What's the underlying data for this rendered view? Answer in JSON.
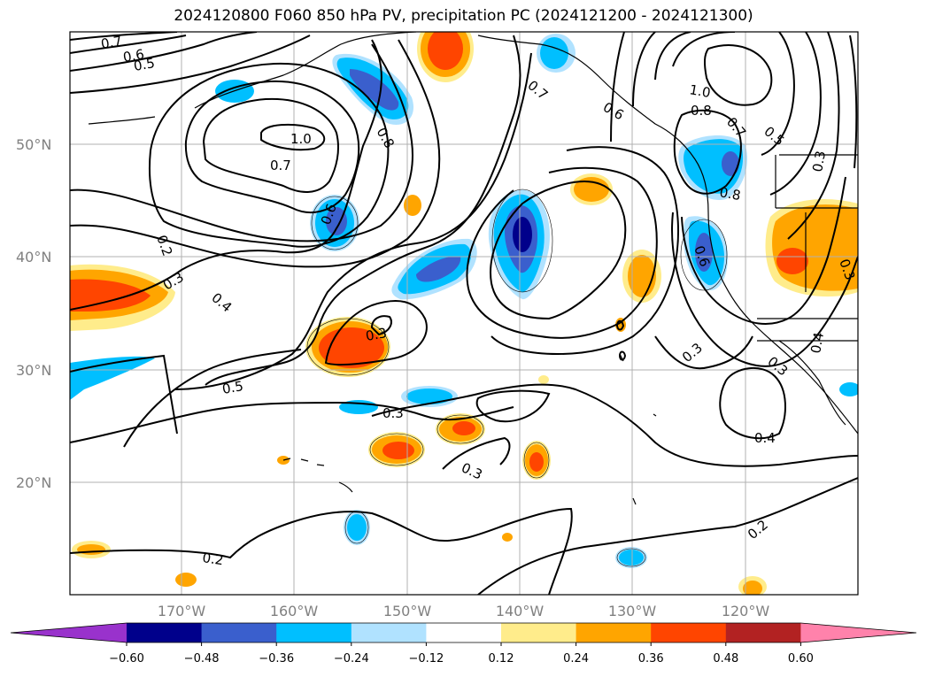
{
  "title": "2024120800 F060 850 hPa PV, precipitation PC (2024121200 - 2024121300)",
  "map": {
    "lat_labels": [
      "50°N",
      "40°N",
      "30°N",
      "20°N"
    ],
    "lon_labels": [
      "170°W",
      "160°W",
      "150°W",
      "140°W",
      "130°W",
      "120°W"
    ],
    "gridlines": true,
    "extent": {
      "lon_min": -180,
      "lon_max": -110,
      "lat_min": 10,
      "lat_max": 60
    }
  },
  "pv_contour_labels": [
    "0.7",
    "0.6",
    "0.5",
    "1.0",
    "0.7",
    "0.8",
    "0.6",
    "0.7",
    "0.6",
    "1.0",
    "0.8",
    "0.7",
    "0.5",
    "0.3",
    "0.8",
    "0.6",
    "0.2",
    "0.3",
    "0.4",
    "0.3",
    "0.5",
    "0.3",
    "0.3",
    "0.3",
    "0.3",
    "0.4",
    "0.4",
    "0.3",
    "0.2",
    "0.2"
  ],
  "colorbar": {
    "colors": [
      "#9932cc",
      "#00008b",
      "#3a5fcd",
      "#00bfff",
      "#b0e2ff",
      "#ffffff",
      "#ffec8b",
      "#ffa500",
      "#ff4500",
      "#b22222",
      "#ff82ab"
    ],
    "ticks": [
      "−0.60",
      "−0.48",
      "−0.36",
      "−0.24",
      "−0.12",
      "0.12",
      "0.24",
      "0.36",
      "0.48",
      "0.60"
    ],
    "bounds": [
      -0.6,
      -0.48,
      -0.36,
      -0.24,
      -0.12,
      0.12,
      0.24,
      0.36,
      0.48,
      0.6
    ]
  },
  "colors": {
    "neg_light": "#b0e2ff",
    "neg_mid": "#00bfff",
    "neg_strong": "#3a5fcd",
    "neg_max": "#00008b",
    "pos_light": "#ffec8b",
    "pos_mid": "#ffa500",
    "pos_strong": "#ff4500"
  }
}
